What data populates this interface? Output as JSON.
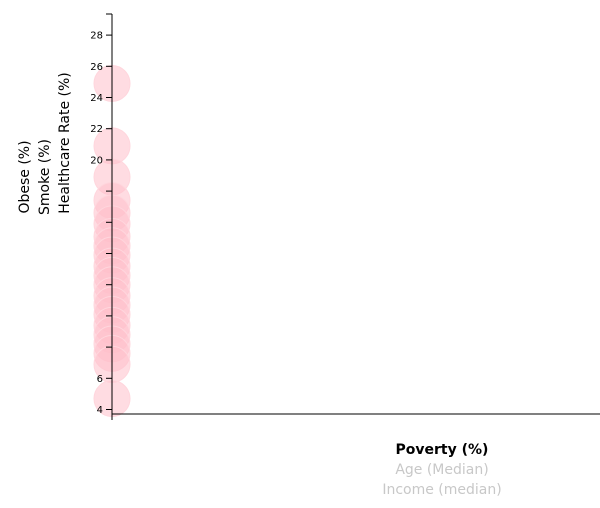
{
  "chart_data": {
    "type": "scatter",
    "x_labels": [
      "Poverty (%)",
      "Age (Median)",
      "Income (median)"
    ],
    "x_label_active": [
      true,
      false,
      false
    ],
    "y_labels": [
      "Healthcare Rate (%)",
      "Smoke (%)",
      "Obese (%)"
    ],
    "y_label_active": [
      true,
      false,
      false
    ],
    "ylim": [
      3.5,
      29.5
    ],
    "y_ticks": [
      4,
      6,
      8,
      10,
      12,
      14,
      16,
      18,
      20,
      22,
      24,
      26,
      28
    ],
    "y_tick_labels": [
      "4",
      "6",
      "",
      "",
      "",
      "",
      "",
      "",
      "20",
      "22",
      "24",
      "26",
      "28"
    ],
    "points": [
      {
        "x": 0,
        "y": 24.9
      },
      {
        "x": 0,
        "y": 20.9
      },
      {
        "x": 0,
        "y": 18.9
      },
      {
        "x": 0,
        "y": 17.4
      },
      {
        "x": 0,
        "y": 16.6
      },
      {
        "x": 0,
        "y": 15.9
      },
      {
        "x": 0,
        "y": 15.1
      },
      {
        "x": 0,
        "y": 14.5
      },
      {
        "x": 0,
        "y": 13.9
      },
      {
        "x": 0,
        "y": 13.2
      },
      {
        "x": 0,
        "y": 12.6
      },
      {
        "x": 0,
        "y": 12.0
      },
      {
        "x": 0,
        "y": 11.3
      },
      {
        "x": 0,
        "y": 10.7
      },
      {
        "x": 0,
        "y": 10.1
      },
      {
        "x": 0,
        "y": 9.4
      },
      {
        "x": 0,
        "y": 8.8
      },
      {
        "x": 0,
        "y": 8.2
      },
      {
        "x": 0,
        "y": 7.6
      },
      {
        "x": 0,
        "y": 6.9
      },
      {
        "x": 0,
        "y": 4.7
      }
    ],
    "point_color": "#ffc0cb"
  }
}
